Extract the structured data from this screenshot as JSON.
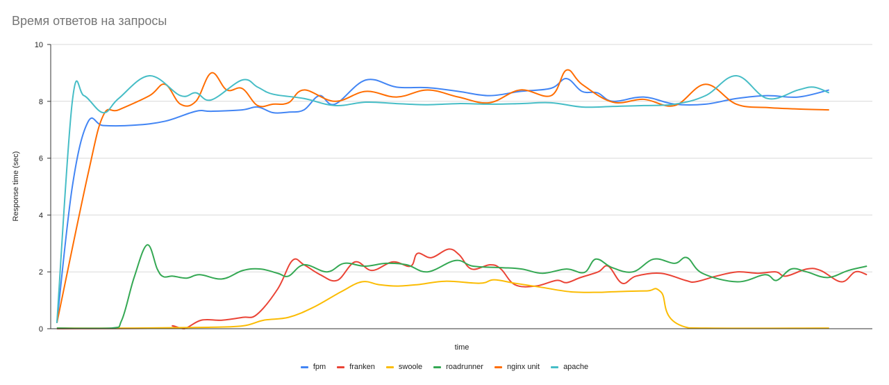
{
  "chart_data": {
    "type": "line",
    "title": "Время ответов на запросы",
    "xlabel": "time",
    "ylabel": "Response time (sec)",
    "ylim": [
      0,
      10
    ],
    "xlim": [
      -0.8,
      105.6
    ],
    "yticks": [
      "0",
      "2",
      "4",
      "6",
      "8",
      "10"
    ],
    "grid": true,
    "legend": "bottom",
    "series": [
      {
        "name": "fpm",
        "color": "#4285f4",
        "x": [
          0,
          2,
          4,
          6,
          10,
          14,
          18,
          20,
          24,
          26,
          28,
          30,
          32,
          34,
          36,
          40,
          44,
          48,
          52,
          56,
          60,
          64,
          66,
          68,
          70,
          72,
          76,
          80,
          84,
          88,
          92,
          96,
          100
        ],
        "y": [
          0.2,
          5.0,
          7.26,
          7.15,
          7.16,
          7.3,
          7.65,
          7.65,
          7.7,
          7.8,
          7.6,
          7.62,
          7.7,
          8.2,
          7.9,
          8.75,
          8.5,
          8.48,
          8.35,
          8.2,
          8.35,
          8.46,
          8.8,
          8.35,
          8.3,
          8.0,
          8.15,
          7.9,
          7.9,
          8.1,
          8.2,
          8.15,
          8.4
        ]
      },
      {
        "name": "franken",
        "color": "#ea4335",
        "x": [
          0,
          14.2,
          15,
          16.5,
          18.7,
          21.4,
          24.1,
          25.9,
          28.6,
          30.5,
          32,
          34.1,
          36.3,
          38.6,
          40.8,
          43.5,
          45.8,
          46.7,
          48.5,
          50.7,
          52.1,
          53.7,
          56.1,
          57.5,
          59.3,
          62,
          64.7,
          66,
          67.8,
          70.1,
          71.4,
          73.2,
          75,
          78.2,
          81.4,
          82.7,
          85.4,
          88.1,
          90.8,
          93.1,
          94.4,
          97.1,
          98.9,
          101.6,
          103.4,
          104.9
        ],
        "y": [
          0.0,
          0.02,
          0.1,
          0.0,
          0.3,
          0.3,
          0.4,
          0.5,
          1.4,
          2.4,
          2.25,
          1.9,
          1.7,
          2.35,
          2.05,
          2.35,
          2.2,
          2.65,
          2.5,
          2.8,
          2.6,
          2.1,
          2.25,
          2.1,
          1.55,
          1.5,
          1.7,
          1.62,
          1.8,
          2.0,
          2.2,
          1.6,
          1.85,
          1.95,
          1.7,
          1.65,
          1.85,
          2.0,
          1.95,
          2.0,
          1.85,
          2.1,
          2.05,
          1.65,
          2.0,
          1.9
        ]
      },
      {
        "name": "swoole",
        "color": "#fbbc04",
        "x": [
          0,
          10,
          19.6,
          24.1,
          26.8,
          30,
          33.2,
          36.8,
          39.5,
          41.7,
          44,
          46.7,
          50.3,
          54.8,
          56.6,
          59.3,
          62.9,
          66.5,
          70.1,
          71.9,
          76.4,
          78.2,
          81.8,
          100
        ],
        "y": [
          0.02,
          0.02,
          0.05,
          0.1,
          0.3,
          0.4,
          0.75,
          1.3,
          1.65,
          1.55,
          1.5,
          1.55,
          1.67,
          1.6,
          1.72,
          1.6,
          1.45,
          1.3,
          1.28,
          1.3,
          1.33,
          1.3,
          0.03,
          0.02
        ]
      },
      {
        "name": "roadrunner",
        "color": "#34a853",
        "x": [
          0,
          7,
          8.4,
          10,
          11.7,
          13,
          13.8,
          15,
          16.8,
          18.5,
          21.4,
          24.1,
          26.4,
          28.6,
          30,
          32,
          35,
          37.2,
          39.9,
          42.6,
          45.3,
          48,
          51.6,
          53.9,
          57.5,
          60.2,
          62.9,
          66,
          68.3,
          69.8,
          71.9,
          74.6,
          77.3,
          80,
          81.6,
          83.6,
          88.1,
          91.7,
          93.2,
          95.1,
          97.1,
          99.8,
          102.5,
          104.9
        ],
        "y": [
          0.02,
          0.02,
          0.3,
          1.8,
          2.95,
          2.1,
          1.83,
          1.85,
          1.78,
          1.9,
          1.75,
          2.05,
          2.1,
          1.95,
          1.85,
          2.25,
          2.0,
          2.3,
          2.2,
          2.3,
          2.25,
          2.0,
          2.4,
          2.2,
          2.15,
          2.1,
          1.95,
          2.1,
          1.98,
          2.45,
          2.15,
          2.0,
          2.45,
          2.3,
          2.5,
          1.95,
          1.65,
          1.9,
          1.7,
          2.1,
          2.0,
          1.8,
          2.05,
          2.2
        ]
      },
      {
        "name": "nginx unit",
        "color": "#ff6d01",
        "x": [
          0,
          4,
          6,
          8,
          12,
          14,
          16,
          18,
          20,
          22,
          24,
          26,
          28,
          30,
          32,
          36,
          40,
          44,
          48,
          52,
          56,
          60,
          64,
          66,
          68,
          72,
          76,
          80,
          84,
          88,
          92,
          96,
          100
        ],
        "y": [
          0.2,
          5.4,
          7.5,
          7.7,
          8.2,
          8.6,
          7.9,
          8.0,
          9.0,
          8.4,
          8.45,
          7.85,
          7.9,
          7.95,
          8.4,
          8.0,
          8.35,
          8.15,
          8.4,
          8.15,
          7.95,
          8.4,
          8.2,
          9.1,
          8.6,
          7.97,
          8.07,
          7.85,
          8.6,
          7.9,
          7.78,
          7.73,
          7.7
        ]
      },
      {
        "name": "apache",
        "color": "#46bdc6",
        "x": [
          0,
          2,
          3.5,
          6,
          8,
          12,
          16,
          18,
          20,
          24,
          26,
          28,
          32,
          36,
          40,
          44,
          48,
          52,
          56,
          60,
          64,
          68,
          72,
          76,
          80,
          84,
          88,
          92,
          96,
          98,
          100
        ],
        "y": [
          0.2,
          8.0,
          8.2,
          7.6,
          8.1,
          8.9,
          8.2,
          8.3,
          8.05,
          8.75,
          8.5,
          8.25,
          8.1,
          7.85,
          7.97,
          7.92,
          7.88,
          7.92,
          7.9,
          7.92,
          7.95,
          7.8,
          7.82,
          7.85,
          7.9,
          8.2,
          8.9,
          8.1,
          8.4,
          8.5,
          8.3
        ]
      }
    ]
  }
}
